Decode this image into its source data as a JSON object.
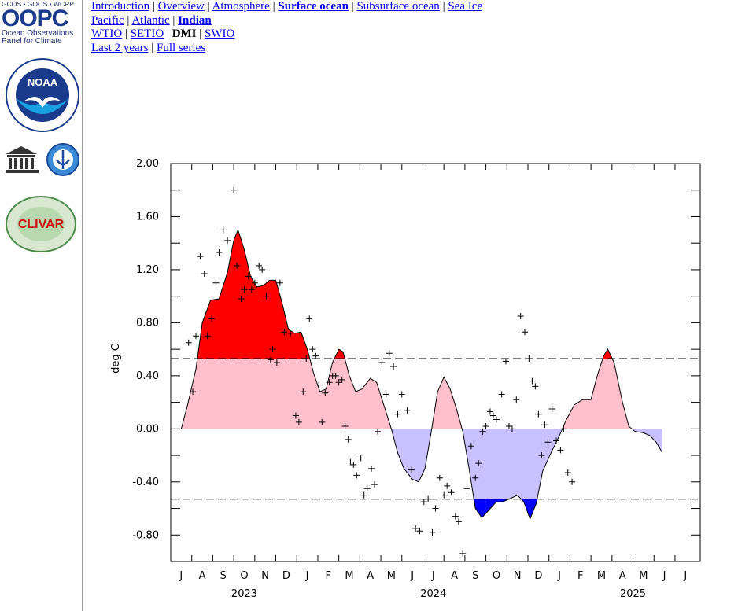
{
  "nav": {
    "row1": [
      "Introduction",
      "Overview",
      "Atmosphere",
      "Surface ocean",
      "Subsurface ocean",
      "Sea Ice"
    ],
    "row2": [
      "Pacific",
      "Atlantic",
      "Indian"
    ],
    "row3": [
      "WTIO",
      "SETIO",
      "DMI",
      "SWIO"
    ],
    "row4": [
      "Last 2 years",
      "Full series"
    ]
  },
  "sidebar": {
    "oopc_top": "GCOS • GOOS • WCRP",
    "oopc_name": "OOPC",
    "oopc_sub1": "Ocean Observations",
    "oopc_sub2": "Panel for Climate",
    "noaa": "NOAA",
    "unesco": "UNESCO",
    "clivar": "CLIVAR"
  },
  "chart_data": {
    "type": "area",
    "ylabel": "deg C",
    "ylim": [
      -1.0,
      2.0
    ],
    "yticks": [
      "2.00",
      "1.60",
      "1.20",
      "0.80",
      "0.40",
      "0.00",
      "-0.40",
      "-0.80"
    ],
    "threshold": 0.53,
    "month_labels": [
      "J",
      "A",
      "S",
      "O",
      "N",
      "D",
      "J",
      "F",
      "M",
      "A",
      "M",
      "J",
      "J",
      "A",
      "S",
      "O",
      "N",
      "D",
      "J",
      "F",
      "M",
      "A",
      "M",
      "J",
      "J"
    ],
    "year_labels": [
      {
        "label": "2023",
        "month_index": 3
      },
      {
        "label": "2024",
        "month_index": 12
      },
      {
        "label": "2025",
        "month_index": 21.5
      }
    ],
    "colors": {
      "above": "#ff0000",
      "pos": "#ffc0cb",
      "neg": "#c8c0ff",
      "below": "#0000ff"
    },
    "smoothed": [
      [
        0,
        0.0
      ],
      [
        0.3,
        0.18
      ],
      [
        0.7,
        0.45
      ],
      [
        1.0,
        0.8
      ],
      [
        1.4,
        0.97
      ],
      [
        1.8,
        0.98
      ],
      [
        2.2,
        1.18
      ],
      [
        2.5,
        1.42
      ],
      [
        2.7,
        1.5
      ],
      [
        3.0,
        1.35
      ],
      [
        3.3,
        1.15
      ],
      [
        3.6,
        1.07
      ],
      [
        3.9,
        1.08
      ],
      [
        4.2,
        1.12
      ],
      [
        4.5,
        1.12
      ],
      [
        4.8,
        0.95
      ],
      [
        5.1,
        0.75
      ],
      [
        5.4,
        0.72
      ],
      [
        5.7,
        0.73
      ],
      [
        6.0,
        0.6
      ],
      [
        6.3,
        0.42
      ],
      [
        6.6,
        0.28
      ],
      [
        6.9,
        0.3
      ],
      [
        7.2,
        0.5
      ],
      [
        7.5,
        0.6
      ],
      [
        7.7,
        0.58
      ],
      [
        8.0,
        0.4
      ],
      [
        8.3,
        0.28
      ],
      [
        8.6,
        0.3
      ],
      [
        9.0,
        0.38
      ],
      [
        9.3,
        0.35
      ],
      [
        9.6,
        0.2
      ],
      [
        10.0,
        0.0
      ],
      [
        10.3,
        -0.18
      ],
      [
        10.6,
        -0.3
      ],
      [
        11.0,
        -0.38
      ],
      [
        11.3,
        -0.4
      ],
      [
        11.6,
        -0.3
      ],
      [
        11.9,
        -0.02
      ],
      [
        12.2,
        0.28
      ],
      [
        12.5,
        0.39
      ],
      [
        12.8,
        0.3
      ],
      [
        13.1,
        0.15
      ],
      [
        13.4,
        -0.02
      ],
      [
        13.7,
        -0.3
      ],
      [
        14.0,
        -0.6
      ],
      [
        14.3,
        -0.67
      ],
      [
        14.6,
        -0.62
      ],
      [
        15.0,
        -0.55
      ],
      [
        15.3,
        -0.55
      ],
      [
        15.6,
        -0.53
      ],
      [
        16.0,
        -0.5
      ],
      [
        16.3,
        -0.55
      ],
      [
        16.6,
        -0.68
      ],
      [
        16.9,
        -0.56
      ],
      [
        17.2,
        -0.32
      ],
      [
        17.6,
        -0.18
      ],
      [
        18.0,
        -0.05
      ],
      [
        18.3,
        0.06
      ],
      [
        18.7,
        0.18
      ],
      [
        19.1,
        0.22
      ],
      [
        19.5,
        0.22
      ],
      [
        19.8,
        0.4
      ],
      [
        20.1,
        0.55
      ],
      [
        20.3,
        0.6
      ],
      [
        20.6,
        0.5
      ],
      [
        21.0,
        0.2
      ],
      [
        21.3,
        0.02
      ],
      [
        21.6,
        -0.02
      ],
      [
        22.0,
        -0.03
      ],
      [
        22.3,
        -0.05
      ],
      [
        22.6,
        -0.1
      ],
      [
        22.9,
        -0.18
      ]
    ],
    "points": [
      [
        0.35,
        0.65
      ],
      [
        0.55,
        0.28
      ],
      [
        0.7,
        0.7
      ],
      [
        0.9,
        1.3
      ],
      [
        1.1,
        1.17
      ],
      [
        1.25,
        0.7
      ],
      [
        1.45,
        0.83
      ],
      [
        1.65,
        1.1
      ],
      [
        1.8,
        1.33
      ],
      [
        2.0,
        1.5
      ],
      [
        2.2,
        1.42
      ],
      [
        2.5,
        1.8
      ],
      [
        2.65,
        1.23
      ],
      [
        2.85,
        0.98
      ],
      [
        3.0,
        1.05
      ],
      [
        3.2,
        1.15
      ],
      [
        3.35,
        1.05
      ],
      [
        3.5,
        1.1
      ],
      [
        3.7,
        1.23
      ],
      [
        3.85,
        1.2
      ],
      [
        4.05,
        1.0
      ],
      [
        4.25,
        0.52
      ],
      [
        4.35,
        0.6
      ],
      [
        4.55,
        0.5
      ],
      [
        4.7,
        1.1
      ],
      [
        4.9,
        0.73
      ],
      [
        5.2,
        0.72
      ],
      [
        5.45,
        0.1
      ],
      [
        5.6,
        0.05
      ],
      [
        5.8,
        0.28
      ],
      [
        5.95,
        0.53
      ],
      [
        6.1,
        0.83
      ],
      [
        6.25,
        0.6
      ],
      [
        6.4,
        0.55
      ],
      [
        6.55,
        0.33
      ],
      [
        6.7,
        0.05
      ],
      [
        6.85,
        0.27
      ],
      [
        7.05,
        0.35
      ],
      [
        7.2,
        0.4
      ],
      [
        7.35,
        0.4
      ],
      [
        7.5,
        0.35
      ],
      [
        7.65,
        0.37
      ],
      [
        7.8,
        0.02
      ],
      [
        7.95,
        -0.08
      ],
      [
        8.05,
        -0.25
      ],
      [
        8.2,
        -0.27
      ],
      [
        8.35,
        -0.35
      ],
      [
        8.55,
        -0.22
      ],
      [
        8.7,
        -0.5
      ],
      [
        8.85,
        -0.45
      ],
      [
        9.05,
        -0.3
      ],
      [
        9.2,
        -0.42
      ],
      [
        9.35,
        -0.02
      ],
      [
        9.55,
        0.5
      ],
      [
        9.75,
        0.26
      ],
      [
        9.9,
        0.57
      ],
      [
        10.1,
        0.47
      ],
      [
        10.3,
        0.11
      ],
      [
        10.5,
        0.26
      ],
      [
        10.75,
        0.14
      ],
      [
        10.95,
        -0.31
      ],
      [
        11.15,
        -0.75
      ],
      [
        11.35,
        -0.77
      ],
      [
        11.55,
        -0.55
      ],
      [
        11.75,
        -0.53
      ],
      [
        11.95,
        -0.78
      ],
      [
        12.1,
        -0.6
      ],
      [
        12.3,
        -0.37
      ],
      [
        12.5,
        -0.5
      ],
      [
        12.65,
        -0.43
      ],
      [
        12.85,
        -0.48
      ],
      [
        13.05,
        -0.66
      ],
      [
        13.2,
        -0.7
      ],
      [
        13.4,
        -0.94
      ],
      [
        13.6,
        -0.45
      ],
      [
        13.8,
        -0.13
      ],
      [
        14.0,
        -0.37
      ],
      [
        14.15,
        -0.26
      ],
      [
        14.35,
        -0.02
      ],
      [
        14.5,
        0.02
      ],
      [
        14.7,
        0.13
      ],
      [
        14.85,
        0.1
      ],
      [
        15.0,
        0.07
      ],
      [
        15.25,
        0.26
      ],
      [
        15.45,
        0.51
      ],
      [
        15.6,
        0.02
      ],
      [
        15.75,
        0.0
      ],
      [
        15.95,
        0.22
      ],
      [
        16.15,
        0.85
      ],
      [
        16.35,
        0.73
      ],
      [
        16.55,
        0.53
      ],
      [
        16.7,
        0.36
      ],
      [
        16.85,
        0.32
      ],
      [
        17.0,
        0.11
      ],
      [
        17.15,
        -0.2
      ],
      [
        17.3,
        0.03
      ],
      [
        17.45,
        -0.1
      ],
      [
        17.65,
        0.15
      ],
      [
        17.85,
        -0.09
      ],
      [
        18.05,
        -0.16
      ],
      [
        18.2,
        0.0
      ],
      [
        18.4,
        -0.33
      ],
      [
        18.6,
        -0.4
      ]
    ]
  }
}
